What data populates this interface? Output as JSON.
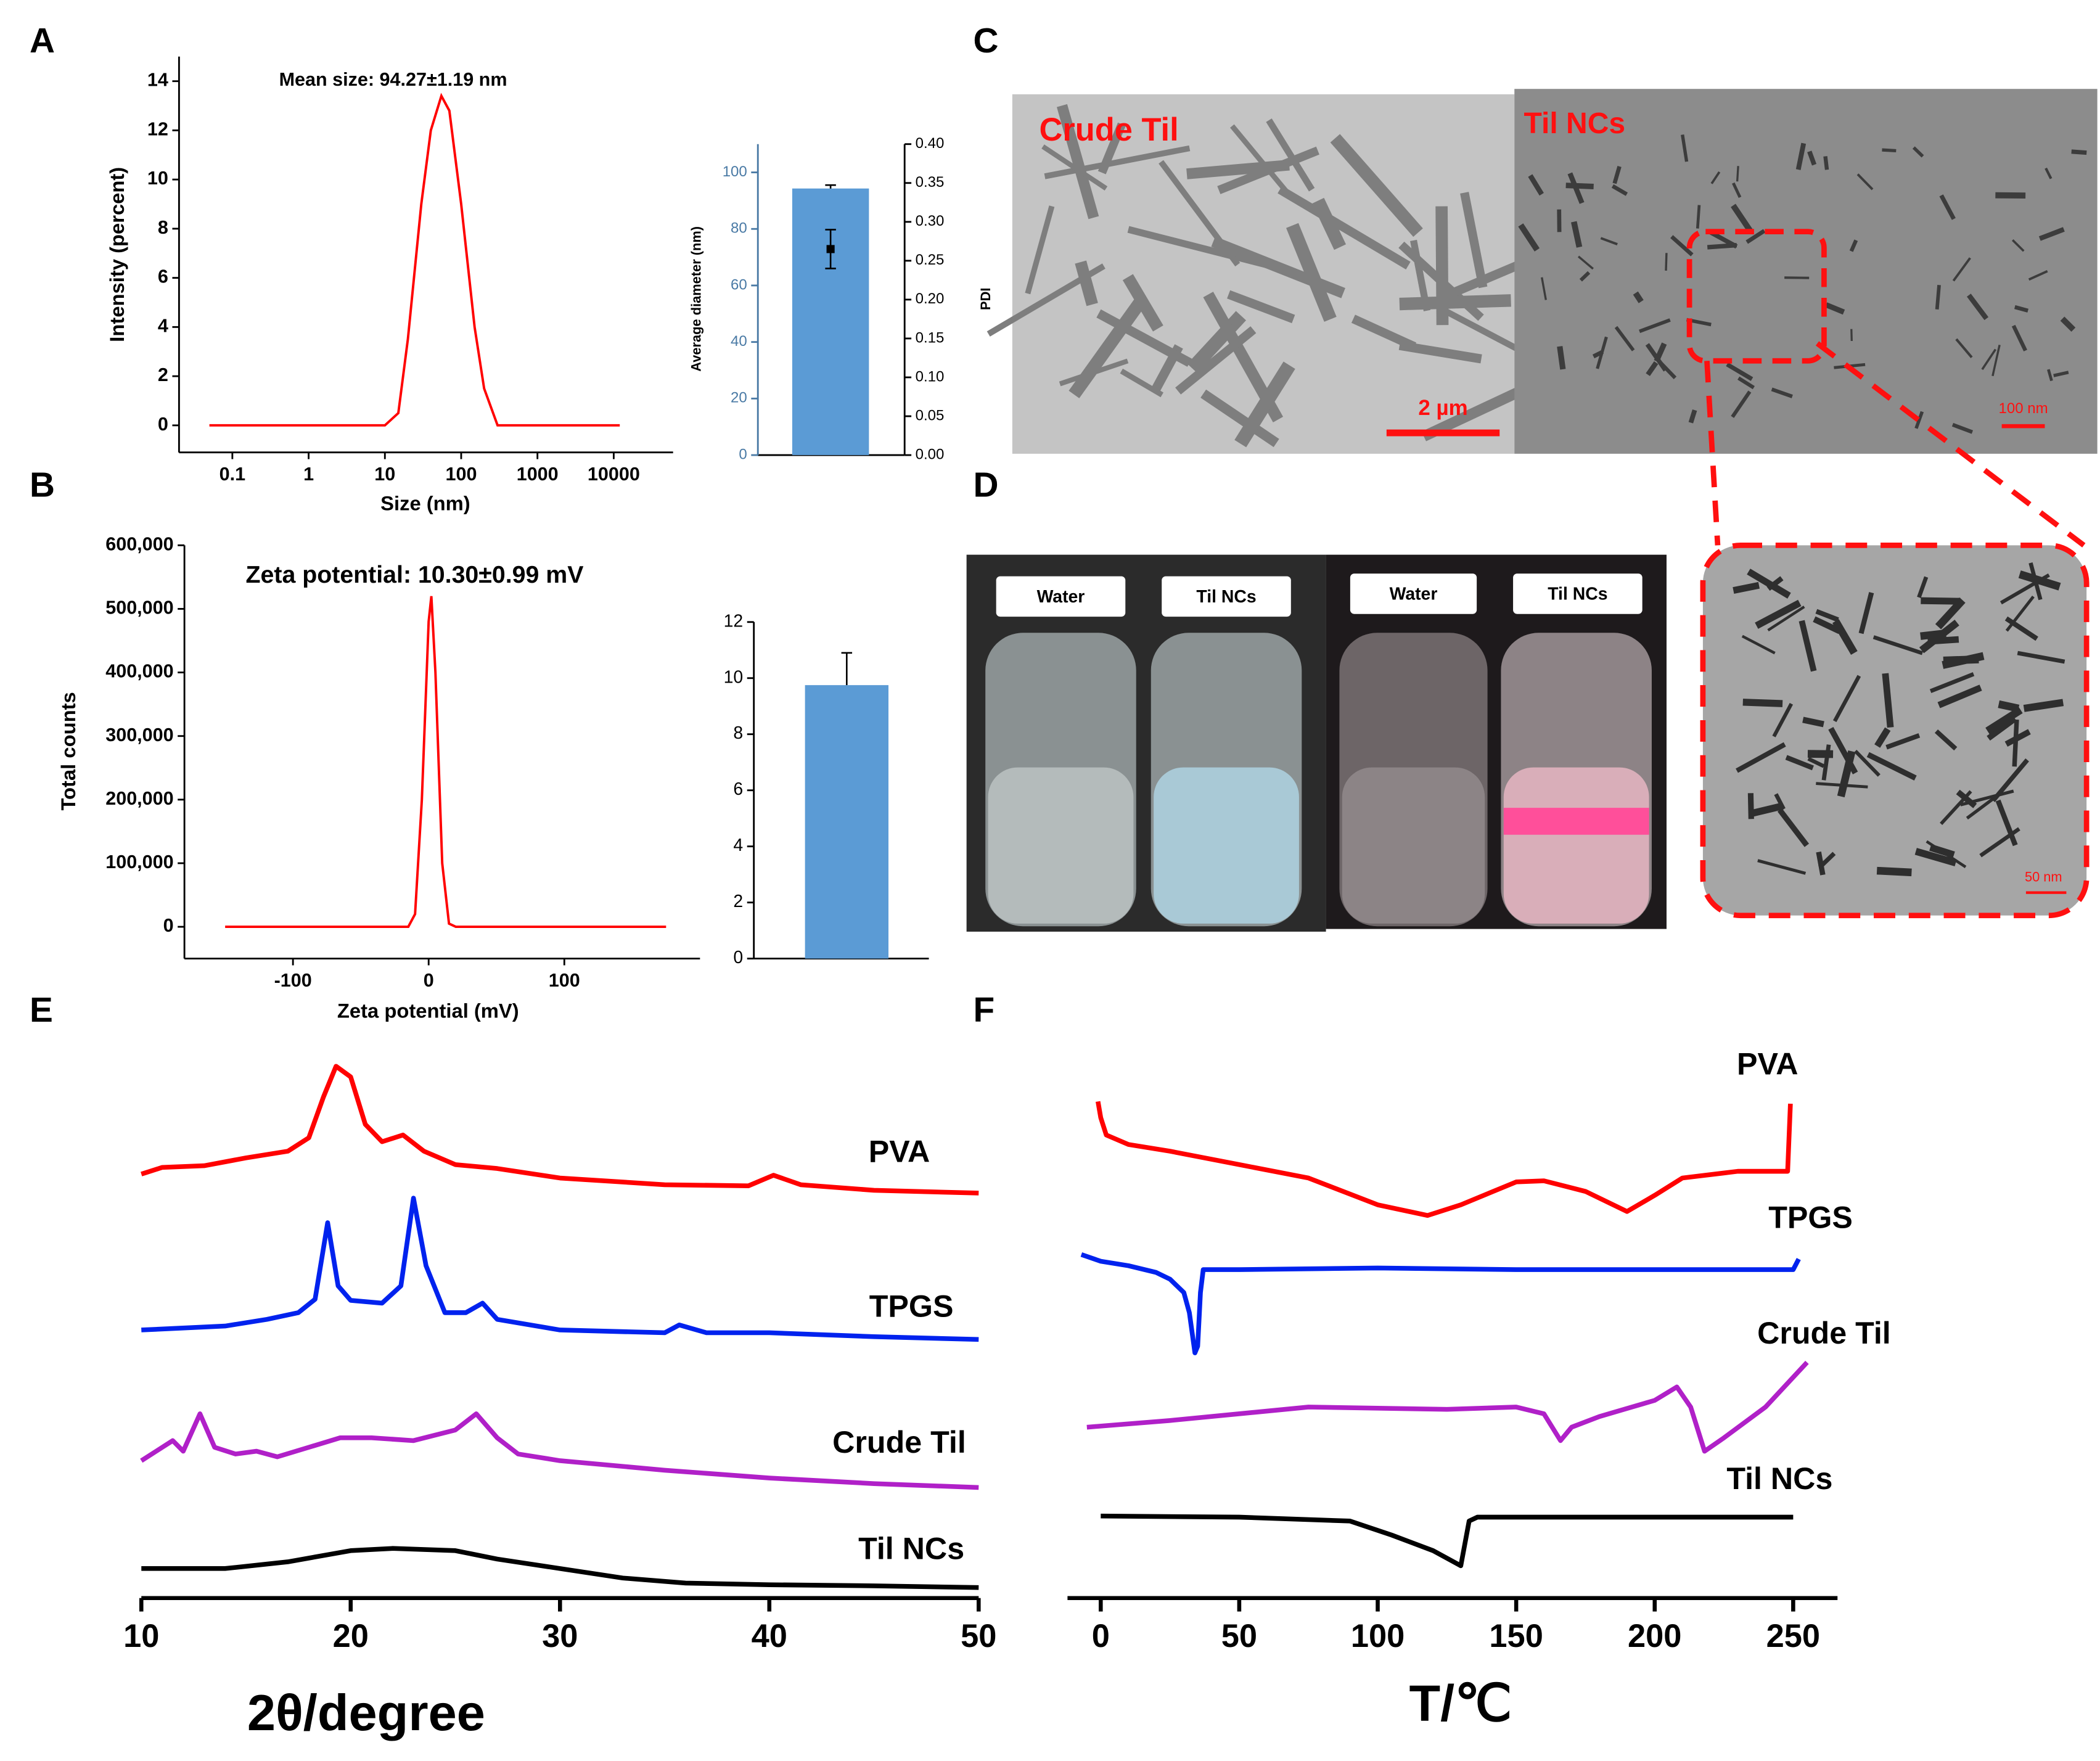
{
  "panel_labels": [
    "A",
    "B",
    "C",
    "D",
    "E",
    "F"
  ],
  "micrographs": {
    "crude_label": "Crude Til",
    "nc_label": "Til NCs",
    "scale_2um": "2 µm",
    "scale_100nm": "100 nm",
    "scale_50nm": "50 nm"
  },
  "photos": {
    "labels": [
      "Water",
      "Til NCs",
      "Water",
      "Til NCs"
    ]
  },
  "chart_data": [
    {
      "type": "line",
      "title": "Mean size: 94.27±1.19 nm",
      "xlabel": "Size (nm)",
      "ylabel": "Intensity (percent)",
      "log_x": true,
      "color": "#ff0000",
      "x": [
        0.05,
        10,
        15,
        20,
        30,
        40,
        55,
        70,
        100,
        150,
        200,
        300,
        12000
      ],
      "values": [
        0,
        0,
        0.5,
        3.5,
        9,
        12,
        13.4,
        12.8,
        9,
        4,
        1.5,
        0,
        0
      ],
      "xlim": [
        0.02,
        60000
      ],
      "xticks": [
        0.1,
        1,
        10,
        100,
        1000,
        10000
      ],
      "ylim": [
        -1.1,
        15
      ],
      "yticks": [
        0,
        2,
        4,
        6,
        8,
        10,
        12,
        14
      ]
    },
    {
      "type": "bar",
      "ylabel": "Average diameter (nm)",
      "y2label": "PDI",
      "color": "#5b9bd5",
      "axis_color": "#4a7aa5",
      "values": [
        94.3
      ],
      "errors": [
        1.2
      ],
      "y2_values": [
        0.265
      ],
      "y2_errors": [
        0.025
      ],
      "ylim": [
        0,
        110
      ],
      "yticks": [
        0,
        20,
        40,
        60,
        80,
        100
      ],
      "y2lim": [
        0,
        0.4
      ],
      "y2ticks": [
        {
          "value": 0,
          "label": "0.00"
        },
        {
          "value": 0.05,
          "label": "0.05"
        },
        {
          "value": 0.1,
          "label": "0.10"
        },
        {
          "value": 0.15,
          "label": "0.15"
        },
        {
          "value": 0.2,
          "label": "0.20"
        },
        {
          "value": 0.25,
          "label": "0.25"
        },
        {
          "value": 0.3,
          "label": "0.30"
        },
        {
          "value": 0.35,
          "label": "0.35"
        },
        {
          "value": 0.4,
          "label": "0.40"
        }
      ]
    },
    {
      "type": "line",
      "title": "Zeta potential: 10.30±0.99 mV",
      "xlabel": "Zeta potential (mV)",
      "ylabel": "Total counts",
      "color": "#ff0000",
      "x": [
        -150,
        -15,
        -10,
        -5,
        0,
        2,
        5,
        10,
        15,
        20,
        175
      ],
      "values": [
        0,
        0,
        20000,
        200000,
        480000,
        520000,
        400000,
        100000,
        5000,
        0,
        0
      ],
      "xlim": [
        -180,
        200
      ],
      "xticks": [
        -100,
        0,
        100
      ],
      "ylim": [
        -50000,
        600000
      ],
      "yticks": [
        0,
        {
          "value": 100000,
          "label": "100,000"
        },
        {
          "value": 200000,
          "label": "200,000"
        },
        {
          "value": 300000,
          "label": "300,000"
        },
        {
          "value": 400000,
          "label": "400,000"
        },
        {
          "value": 500000,
          "label": "500,000"
        },
        {
          "value": 600000,
          "label": "600,000"
        }
      ]
    },
    {
      "type": "bar",
      "color": "#5b9bd5",
      "values": [
        9.75
      ],
      "errors": [
        1.15
      ],
      "ylim": [
        0,
        12
      ],
      "yticks": [
        0,
        2,
        4,
        6,
        8,
        10,
        12
      ]
    },
    {
      "type": "line",
      "xlabel": "2θ/degree",
      "xlim": [
        10,
        50
      ],
      "xticks": [
        10,
        20,
        30,
        40,
        50
      ],
      "ylim": [
        0,
        100
      ],
      "series": [
        {
          "name": "PVA",
          "color": "#ff0000",
          "x": [
            10,
            11,
            13,
            15,
            17,
            18,
            18.7,
            19.3,
            20,
            20.7,
            21.5,
            22.5,
            23.5,
            25,
            27,
            30,
            35,
            39,
            40.2,
            41.5,
            45,
            50
          ],
          "values": [
            75.4,
            76.6,
            76.9,
            78.3,
            79.5,
            81.9,
            89.2,
            94.7,
            92.8,
            84.3,
            81.2,
            82.4,
            79.5,
            77.1,
            76.4,
            74.7,
            73.5,
            73.3,
            75.2,
            73.5,
            72.5,
            72.0
          ]
        },
        {
          "name": "TPGS",
          "color": "#0022ee",
          "x": [
            10,
            14,
            16,
            17.5,
            18.3,
            18.9,
            19.4,
            20,
            21.5,
            22.4,
            23,
            23.6,
            24.5,
            25.5,
            26.3,
            27,
            30,
            35,
            35.7,
            37,
            39,
            40,
            45,
            50
          ],
          "values": [
            47.5,
            48.2,
            49.4,
            50.6,
            53.0,
            66.7,
            55.4,
            52.8,
            52.3,
            55.4,
            71.1,
            59.0,
            50.6,
            50.6,
            52.3,
            49.4,
            47.5,
            47.0,
            48.4,
            47.0,
            47.0,
            47.0,
            46.3,
            45.8
          ]
        },
        {
          "name": "Crude Til",
          "color": "#b020c8",
          "x": [
            10,
            11.5,
            12,
            12.8,
            13.5,
            14.5,
            15.5,
            16.5,
            18,
            19.5,
            21,
            23,
            25,
            26,
            27,
            28,
            30,
            35,
            40,
            45,
            50
          ],
          "values": [
            24.1,
            27.7,
            25.8,
            32.5,
            26.5,
            25.3,
            25.8,
            24.8,
            26.5,
            28.2,
            28.2,
            27.7,
            29.6,
            32.5,
            28.2,
            25.3,
            24.1,
            22.4,
            21.0,
            20.0,
            19.3
          ]
        },
        {
          "name": "Til NCs",
          "color": "#000000",
          "x": [
            10,
            14,
            17,
            20,
            22,
            25,
            27,
            30,
            33,
            36,
            40,
            45,
            50
          ],
          "values": [
            4.8,
            4.8,
            6.0,
            8.0,
            8.4,
            8.0,
            6.5,
            4.8,
            3.1,
            2.2,
            1.9,
            1.7,
            1.4
          ]
        }
      ]
    },
    {
      "type": "line",
      "xlabel": "T/℃",
      "xlim": [
        -12,
        266
      ],
      "xticks": [
        0,
        50,
        100,
        150,
        200,
        250
      ],
      "ylim": [
        0,
        100
      ],
      "series": [
        {
          "name": "PVA",
          "color": "#ff0000",
          "x": [
            -1,
            0,
            2,
            10,
            25,
            50,
            75,
            100,
            118,
            130,
            150,
            160,
            175,
            190,
            200,
            210,
            230,
            248,
            249
          ],
          "values": [
            88.4,
            85.5,
            82.4,
            80.7,
            79.5,
            77.1,
            74.7,
            69.9,
            68.0,
            69.9,
            74.0,
            74.2,
            72.3,
            68.7,
            71.6,
            74.7,
            75.9,
            75.9,
            88.0
          ]
        },
        {
          "name": "TPGS",
          "color": "#0022ee",
          "x": [
            -7,
            0,
            10,
            20,
            25,
            30,
            32,
            34,
            35,
            36,
            37,
            50,
            100,
            150,
            200,
            250,
            252
          ],
          "values": [
            61.0,
            59.8,
            59.0,
            57.8,
            56.6,
            54.2,
            50.6,
            43.4,
            44.6,
            54.2,
            58.3,
            58.3,
            58.6,
            58.3,
            58.3,
            58.3,
            60.2
          ]
        },
        {
          "name": "Crude Til",
          "color": "#b020c8",
          "x": [
            -5,
            25,
            75,
            125,
            150,
            160,
            166,
            170,
            180,
            200,
            208,
            213,
            218,
            225,
            240,
            255
          ],
          "values": [
            30.1,
            31.3,
            33.7,
            33.3,
            33.7,
            32.5,
            27.7,
            30.1,
            32.0,
            34.9,
            37.3,
            33.7,
            25.8,
            28.2,
            33.7,
            41.7
          ]
        },
        {
          "name": "Til NCs",
          "color": "#000000",
          "x": [
            0,
            50,
            90,
            105,
            120,
            130,
            133,
            136,
            200,
            250
          ],
          "values": [
            14.2,
            14.0,
            13.3,
            10.8,
            8.0,
            5.3,
            13.3,
            14.0,
            14.0,
            14.0
          ]
        }
      ]
    }
  ]
}
